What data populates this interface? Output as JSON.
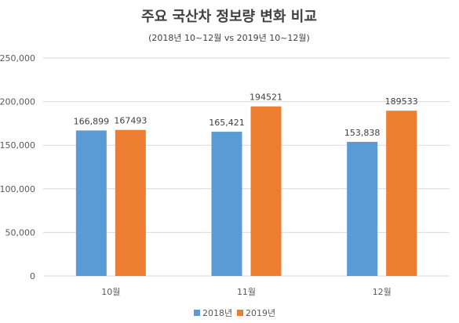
{
  "chart_data": {
    "type": "bar",
    "title": "주요 국산차 정보량 변화 비교",
    "subtitle": "(2018년 10~12월 vs 2019년 10~12월)",
    "categories": [
      "10월",
      "11월",
      "12월"
    ],
    "series": [
      {
        "name": "2018년",
        "values": [
          166899,
          165421,
          153838
        ],
        "labels": [
          "166,899",
          "165,421",
          "153,838"
        ],
        "color": "#5B9BD5"
      },
      {
        "name": "2019년",
        "values": [
          167493,
          194521,
          189533
        ],
        "labels": [
          "167493",
          "194521",
          "189533"
        ],
        "color": "#ED7D31"
      }
    ],
    "ylim": [
      0,
      250000
    ],
    "yticks": [
      0,
      50000,
      100000,
      150000,
      200000,
      250000
    ],
    "ytick_labels": [
      "0",
      "50,000",
      "100,000",
      "150,000",
      "200,000",
      "250,000"
    ],
    "grid": true,
    "legend_position": "bottom",
    "gridline_color": "#D9D9D9"
  }
}
